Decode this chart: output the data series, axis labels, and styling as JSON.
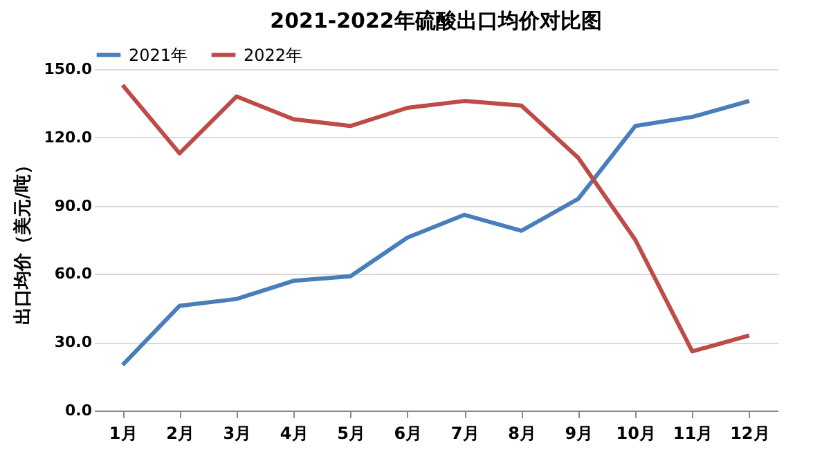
{
  "chart_data": {
    "type": "line",
    "title": "2021-2022年硫酸出口均价对比图",
    "ylabel": "出口均价（美元/吨）",
    "categories": [
      "1月",
      "2月",
      "3月",
      "4月",
      "5月",
      "6月",
      "7月",
      "8月",
      "9月",
      "10月",
      "11月",
      "12月"
    ],
    "series": [
      {
        "name": "2021年",
        "color": "#4a7ebb",
        "values": [
          20,
          46,
          49,
          57,
          59,
          76,
          86,
          79,
          93,
          125,
          129,
          136
        ]
      },
      {
        "name": "2022年",
        "color": "#be4b48",
        "values": [
          143,
          113,
          138,
          128,
          125,
          133,
          136,
          134,
          111,
          75,
          26,
          33
        ]
      }
    ],
    "ylim": [
      0,
      150
    ],
    "yticks": [
      {
        "value": 0,
        "label": "0.0"
      },
      {
        "value": 30,
        "label": "30.0"
      },
      {
        "value": 60,
        "label": "60.0"
      },
      {
        "value": 90,
        "label": "90.0"
      },
      {
        "value": 120,
        "label": "120.0"
      },
      {
        "value": 150,
        "label": "150.0"
      }
    ],
    "grid": "y",
    "legend": "top",
    "marker": "none",
    "line_style": "solid"
  }
}
